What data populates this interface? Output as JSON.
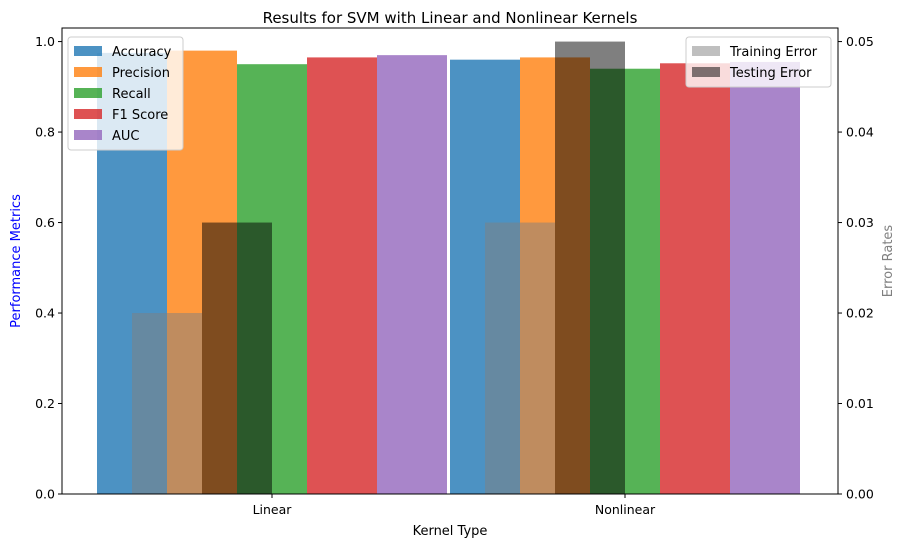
{
  "chart_data": {
    "type": "bar",
    "title": "Results for SVM with Linear and Nonlinear Kernels",
    "xlabel": "Kernel Type",
    "ylabel_left": "Performance Metrics",
    "ylabel_right": "Error Rates",
    "categories": [
      "Linear",
      "Nonlinear"
    ],
    "left_axis": {
      "ylim": [
        0,
        1.03
      ],
      "ticks": [
        0.0,
        0.2,
        0.4,
        0.6,
        0.8,
        1.0
      ],
      "tick_labels": [
        "0.0",
        "0.2",
        "0.4",
        "0.6",
        "0.8",
        "1.0"
      ],
      "label_color": "#0000ff"
    },
    "right_axis": {
      "ylim": [
        0,
        0.0515
      ],
      "ticks": [
        0.0,
        0.01,
        0.02,
        0.03,
        0.04,
        0.05
      ],
      "tick_labels": [
        "0.00",
        "0.01",
        "0.02",
        "0.03",
        "0.04",
        "0.05"
      ],
      "label_color": "#808080"
    },
    "series": [
      {
        "name": "Accuracy",
        "axis": "left",
        "color": "#1f77b4",
        "values": [
          0.975,
          0.96
        ]
      },
      {
        "name": "Precision",
        "axis": "left",
        "color": "#ff7f0e",
        "values": [
          0.98,
          0.965
        ]
      },
      {
        "name": "Recall",
        "axis": "left",
        "color": "#2ca02c",
        "values": [
          0.95,
          0.94
        ]
      },
      {
        "name": "F1 Score",
        "axis": "left",
        "color": "#d62728",
        "values": [
          0.965,
          0.952
        ]
      },
      {
        "name": "AUC",
        "axis": "left",
        "color": "#9467bd",
        "values": [
          0.97,
          0.955
        ]
      },
      {
        "name": "Training Error",
        "axis": "right",
        "color": "#808080",
        "values": [
          0.02,
          0.03
        ]
      },
      {
        "name": "Testing Error",
        "axis": "right",
        "color": "#000000",
        "values": [
          0.03,
          0.05
        ]
      }
    ],
    "legend_left_position": "upper-left",
    "legend_right_position": "upper-right",
    "grid": false
  }
}
